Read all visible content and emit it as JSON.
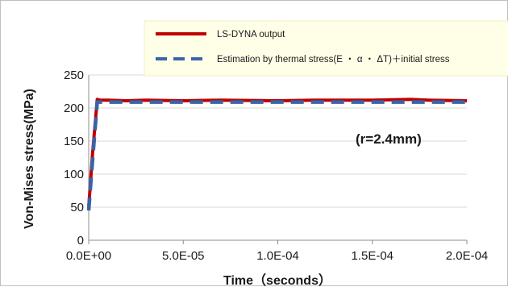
{
  "chart_data": {
    "type": "line",
    "xlabel": "Time（seconds）",
    "ylabel": "Von-Mises stress(MPa)",
    "xlim": [
      0,
      0.0002
    ],
    "ylim": [
      0,
      250
    ],
    "x_ticks": [
      "0.0E+00",
      "5.0E-05",
      "1.0E-04",
      "1.5E-04",
      "2.0E-04"
    ],
    "y_ticks": [
      "0",
      "50",
      "100",
      "150",
      "200",
      "250"
    ],
    "x_tick_values": [
      0,
      5e-05,
      0.0001,
      0.00015,
      0.0002
    ],
    "y_tick_values": [
      0,
      50,
      100,
      150,
      200,
      250
    ],
    "grid": "horizontal",
    "legend_position": "top",
    "annotation": "(r=2.4mm)",
    "series": [
      {
        "name": "LS-DYNA output",
        "color": "#c00000",
        "style": "solid",
        "x": [
          0,
          2e-06,
          4.5e-06,
          6e-06,
          1e-05,
          2e-05,
          3e-05,
          5e-05,
          7e-05,
          0.0001,
          0.00012,
          0.00015,
          0.00017,
          0.00018,
          0.0002
        ],
        "y": [
          50,
          130,
          213,
          212,
          212,
          211,
          212,
          211,
          212,
          211,
          212,
          212,
          213,
          212,
          211
        ]
      },
      {
        "name": "Estimation by thermal stress(E ・ α ・ ΔT)＋initial stress",
        "color": "#3a64a6",
        "style": "dashed",
        "x": [
          0,
          2e-06,
          4.5e-06,
          6e-06,
          5e-05,
          0.0001,
          0.00015,
          0.0002
        ],
        "y": [
          45,
          120,
          209,
          209,
          209,
          209,
          209,
          209
        ]
      }
    ]
  }
}
